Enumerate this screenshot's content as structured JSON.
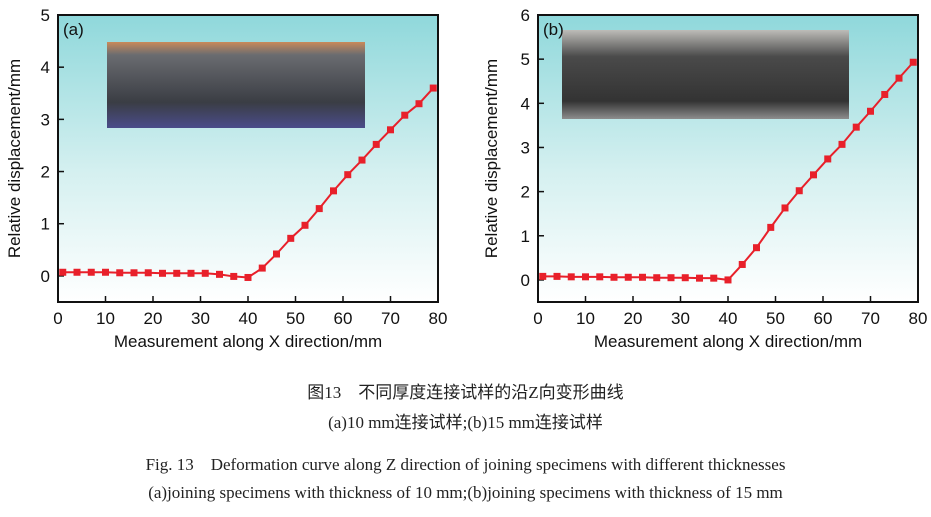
{
  "chart_data": [
    {
      "type": "line",
      "panel_label": "(a)",
      "xlabel": "Measurement along X direction/mm",
      "ylabel": "Relative displacement/mm",
      "xlim": [
        0,
        80
      ],
      "ylim": [
        -0.5,
        5
      ],
      "xticks": [
        0,
        10,
        20,
        30,
        40,
        50,
        60,
        70,
        80
      ],
      "yticks": [
        0,
        1,
        2,
        3,
        4,
        5
      ],
      "x": [
        1,
        4,
        7,
        10,
        13,
        16,
        19,
        22,
        25,
        28,
        31,
        34,
        37,
        40,
        43,
        46,
        49,
        52,
        55,
        58,
        61,
        64,
        67,
        70,
        73,
        76,
        79
      ],
      "y": [
        0.07,
        0.07,
        0.07,
        0.07,
        0.06,
        0.06,
        0.06,
        0.05,
        0.05,
        0.05,
        0.05,
        0.03,
        -0.01,
        -0.03,
        0.15,
        0.42,
        0.72,
        0.97,
        1.29,
        1.63,
        1.94,
        2.22,
        2.52,
        2.8,
        3.08,
        3.3,
        3.6
      ],
      "color": "#e8202a",
      "marker": "square",
      "inset": "photo of 10 mm joined specimen"
    },
    {
      "type": "line",
      "panel_label": "(b)",
      "xlabel": "Measurement along X direction/mm",
      "ylabel": "Relative displacement/mm",
      "xlim": [
        0,
        80
      ],
      "ylim": [
        -0.5,
        6
      ],
      "xticks": [
        0,
        10,
        20,
        30,
        40,
        50,
        60,
        70,
        80
      ],
      "yticks": [
        0,
        1,
        2,
        3,
        4,
        5,
        6
      ],
      "x": [
        1,
        4,
        7,
        10,
        13,
        16,
        19,
        22,
        25,
        28,
        31,
        34,
        37,
        40,
        43,
        46,
        49,
        52,
        55,
        58,
        61,
        64,
        67,
        70,
        73,
        76,
        79
      ],
      "y": [
        0.08,
        0.08,
        0.07,
        0.07,
        0.07,
        0.06,
        0.06,
        0.06,
        0.05,
        0.05,
        0.05,
        0.04,
        0.04,
        0.0,
        0.35,
        0.73,
        1.19,
        1.63,
        2.02,
        2.38,
        2.74,
        3.07,
        3.46,
        3.82,
        4.2,
        4.57,
        4.93
      ],
      "color": "#e8202a",
      "marker": "square",
      "inset": "photo of 15 mm joined specimen"
    }
  ],
  "captions": {
    "cn_title": "图13　不同厚度连接试样的沿Z向变形曲线",
    "cn_sub": "(a)10 mm连接试样;(b)15 mm连接试样",
    "en_title": "Fig. 13　Deformation curve along Z direction of joining specimens with different thicknesses",
    "en_sub": "(a)joining specimens with thickness of 10 mm;(b)joining specimens with thickness of 15 mm"
  }
}
